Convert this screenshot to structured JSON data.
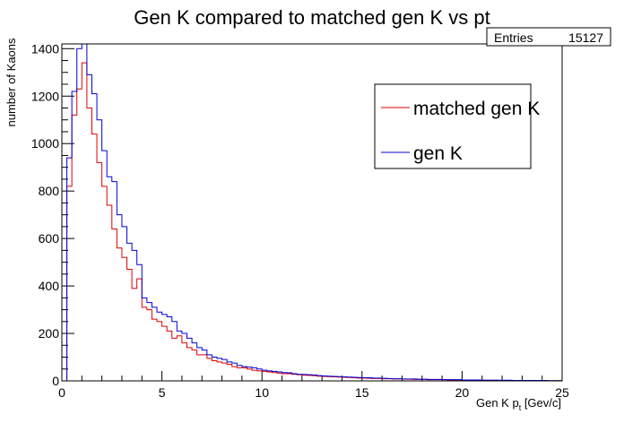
{
  "chart_data": {
    "type": "line",
    "title": "Gen K compared to matched gen K vs pt",
    "xlabel": "Gen K p",
    "xlabel_sub": "t",
    "xlabel_unit": " [Gev/c]",
    "ylabel": "number of Kaons",
    "xlim": [
      0,
      25
    ],
    "ylim": [
      0,
      1420
    ],
    "x_ticks": [
      0,
      5,
      10,
      15,
      20,
      25
    ],
    "y_ticks": [
      0,
      200,
      400,
      600,
      800,
      1000,
      1200,
      1400
    ],
    "grid": false,
    "legend_position": "top-right",
    "stats": {
      "label": "Entries",
      "value": "15127"
    },
    "bin_width": 0.25,
    "x": [
      0.125,
      0.375,
      0.625,
      0.875,
      1.125,
      1.375,
      1.625,
      1.875,
      2.125,
      2.375,
      2.625,
      2.875,
      3.125,
      3.375,
      3.625,
      3.875,
      4.125,
      4.375,
      4.625,
      4.875,
      5.125,
      5.375,
      5.625,
      5.875,
      6.125,
      6.375,
      6.625,
      6.875,
      7.125,
      7.375,
      7.625,
      7.875,
      8.125,
      8.375,
      8.625,
      8.875,
      9.125,
      9.375,
      9.625,
      9.875,
      10.125,
      10.375,
      10.625,
      10.875,
      11.125,
      11.375,
      11.625,
      11.875,
      12.125,
      12.375,
      12.625,
      12.875,
      13.125,
      13.375,
      13.625,
      13.875,
      14.125,
      14.375,
      14.625,
      14.875,
      15.125,
      15.375,
      15.625,
      15.875,
      16.125,
      16.375,
      16.625,
      16.875,
      17.125,
      17.375,
      17.625,
      17.875,
      18.125,
      18.375,
      18.625,
      18.875,
      19.125,
      19.375,
      19.625,
      19.875,
      20.125,
      20.375,
      20.625,
      20.875,
      21.125,
      21.375,
      21.625,
      21.875,
      22.125,
      22.375,
      22.625,
      22.875,
      23.125,
      23.375,
      23.625,
      23.875,
      24.125,
      24.375,
      24.625,
      24.875
    ],
    "series": [
      {
        "name": "matched gen K",
        "color": "#e00000",
        "values": [
          0,
          820,
          1120,
          1230,
          1340,
          1150,
          1040,
          920,
          820,
          740,
          640,
          560,
          520,
          470,
          390,
          430,
          310,
          300,
          260,
          250,
          230,
          210,
          180,
          190,
          160,
          140,
          130,
          110,
          110,
          95,
          85,
          80,
          75,
          70,
          60,
          55,
          55,
          50,
          45,
          42,
          40,
          38,
          35,
          33,
          30,
          30,
          28,
          26,
          24,
          23,
          22,
          20,
          19,
          18,
          17,
          16,
          15,
          14,
          13,
          12,
          12,
          11,
          10,
          10,
          9,
          9,
          8,
          8,
          7,
          7,
          6,
          6,
          6,
          5,
          5,
          5,
          5,
          4,
          4,
          4,
          4,
          4,
          3,
          3,
          3,
          3,
          3,
          2,
          2,
          2,
          2,
          2,
          2,
          2,
          2,
          1,
          1,
          1,
          1,
          1
        ]
      },
      {
        "name": "gen K",
        "color": "#0000d8",
        "values": [
          0,
          940,
          1220,
          1400,
          1420,
          1290,
          1210,
          1100,
          970,
          860,
          840,
          700,
          650,
          580,
          550,
          490,
          350,
          330,
          310,
          290,
          280,
          270,
          250,
          210,
          200,
          180,
          160,
          140,
          130,
          110,
          100,
          95,
          90,
          80,
          75,
          65,
          60,
          58,
          55,
          50,
          45,
          42,
          40,
          38,
          35,
          34,
          30,
          28,
          27,
          26,
          25,
          22,
          21,
          20,
          19,
          18,
          17,
          16,
          15,
          14,
          13,
          13,
          12,
          12,
          11,
          10,
          9,
          9,
          8,
          8,
          8,
          7,
          7,
          6,
          6,
          6,
          5,
          5,
          5,
          5,
          4,
          4,
          4,
          4,
          3,
          3,
          3,
          3,
          3,
          3,
          2,
          2,
          2,
          2,
          2,
          2,
          2,
          1,
          1,
          1
        ]
      }
    ]
  }
}
